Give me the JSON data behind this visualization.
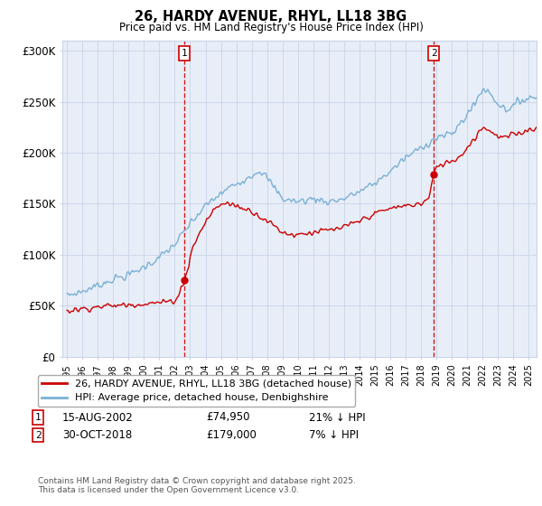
{
  "title_line1": "26, HARDY AVENUE, RHYL, LL18 3BG",
  "title_line2": "Price paid vs. HM Land Registry's House Price Index (HPI)",
  "xlim": [
    1994.7,
    2025.5
  ],
  "ylim": [
    0,
    310000
  ],
  "yticks": [
    0,
    50000,
    100000,
    150000,
    200000,
    250000,
    300000
  ],
  "ytick_labels": [
    "£0",
    "£50K",
    "£100K",
    "£150K",
    "£200K",
    "£250K",
    "£300K"
  ],
  "xtick_years": [
    1995,
    1996,
    1997,
    1998,
    1999,
    2000,
    2001,
    2002,
    2003,
    2004,
    2005,
    2006,
    2007,
    2008,
    2009,
    2010,
    2011,
    2012,
    2013,
    2014,
    2015,
    2016,
    2017,
    2018,
    2019,
    2020,
    2021,
    2022,
    2023,
    2024,
    2025
  ],
  "sale1_x": 2002.62,
  "sale1_y": 74950,
  "sale2_x": 2018.83,
  "sale2_y": 179000,
  "sale1_label": "1",
  "sale2_label": "2",
  "sale_color": "#cc0000",
  "hpi_color": "#7ab0d4",
  "vline_color": "#cc0000",
  "grid_color": "#c8d4e8",
  "legend_text1": "26, HARDY AVENUE, RHYL, LL18 3BG (detached house)",
  "legend_text2": "HPI: Average price, detached house, Denbighshire",
  "annotation1_date": "15-AUG-2002",
  "annotation1_price": "£74,950",
  "annotation1_hpi": "21% ↓ HPI",
  "annotation2_date": "30-OCT-2018",
  "annotation2_price": "£179,000",
  "annotation2_hpi": "7% ↓ HPI",
  "footnote": "Contains HM Land Registry data © Crown copyright and database right 2025.\nThis data is licensed under the Open Government Licence v3.0.",
  "background_color": "#e8eef8",
  "hpi_anchors_year": [
    1995,
    1996,
    1997,
    1998,
    1999,
    2000,
    2001,
    2002,
    2003,
    2004,
    2005,
    2006,
    2007,
    2007.5,
    2008,
    2009,
    2010,
    2011,
    2012,
    2013,
    2014,
    2015,
    2016,
    2017,
    2018,
    2019,
    2020,
    2020.5,
    2021,
    2021.5,
    2022,
    2022.5,
    2023,
    2023.5,
    2024,
    2024.5,
    2025.5
  ],
  "hpi_anchors_val": [
    60000,
    64000,
    70000,
    76000,
    80000,
    88000,
    97000,
    110000,
    130000,
    148000,
    160000,
    170000,
    178000,
    183000,
    175000,
    155000,
    152000,
    155000,
    152000,
    155000,
    162000,
    170000,
    182000,
    195000,
    205000,
    215000,
    218000,
    228000,
    238000,
    248000,
    263000,
    258000,
    248000,
    243000,
    245000,
    252000,
    255000
  ],
  "sale_anchors_year": [
    1995,
    1996,
    1997,
    1998,
    1999,
    2000,
    2001,
    2002,
    2002.3,
    2002.62,
    2002.9,
    2003,
    2003.5,
    2004,
    2004.5,
    2005,
    2005.5,
    2006,
    2006.5,
    2007,
    2007.5,
    2008,
    2008.5,
    2009,
    2009.5,
    2010,
    2010.5,
    2011,
    2011.5,
    2012,
    2012.5,
    2013,
    2013.5,
    2014,
    2014.5,
    2015,
    2015.5,
    2016,
    2016.5,
    2017,
    2017.5,
    2018,
    2018.5,
    2018.83,
    2019,
    2019.5,
    2020,
    2020.5,
    2021,
    2021.5,
    2022,
    2022.5,
    2023,
    2023.5,
    2024,
    2024.5,
    2025.5
  ],
  "sale_anchors_val": [
    45000,
    47000,
    49000,
    50000,
    51000,
    52000,
    53000,
    55000,
    62000,
    74950,
    88000,
    100000,
    118000,
    132000,
    143000,
    150000,
    150000,
    148000,
    145000,
    143000,
    138000,
    133000,
    128000,
    122000,
    120000,
    120000,
    121000,
    122000,
    123000,
    124000,
    125000,
    127000,
    130000,
    133000,
    137000,
    140000,
    143000,
    145000,
    147000,
    148000,
    149000,
    150000,
    155000,
    179000,
    185000,
    190000,
    192000,
    196000,
    205000,
    215000,
    225000,
    222000,
    215000,
    215000,
    218000,
    220000,
    225000
  ]
}
